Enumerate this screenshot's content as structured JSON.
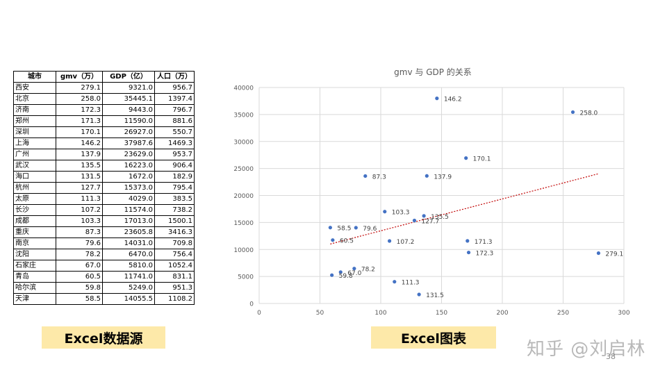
{
  "table": {
    "headers": [
      "城市",
      "gmv（万）",
      "GDP（亿）",
      "人口（万）"
    ],
    "rows": [
      [
        "西安",
        "279.1",
        "9321.0",
        "956.7"
      ],
      [
        "北京",
        "258.0",
        "35445.1",
        "1397.4"
      ],
      [
        "济南",
        "172.3",
        "9443.0",
        "796.7"
      ],
      [
        "郑州",
        "171.3",
        "11590.0",
        "881.6"
      ],
      [
        "深圳",
        "170.1",
        "26927.0",
        "550.7"
      ],
      [
        "上海",
        "146.2",
        "37987.6",
        "1469.3"
      ],
      [
        "广州",
        "137.9",
        "23629.0",
        "953.7"
      ],
      [
        "武汉",
        "135.5",
        "16223.0",
        "906.4"
      ],
      [
        "海口",
        "131.5",
        "1672.0",
        "182.9"
      ],
      [
        "杭州",
        "127.7",
        "15373.0",
        "795.4"
      ],
      [
        "太原",
        "111.3",
        "4029.0",
        "383.5"
      ],
      [
        "长沙",
        "107.2",
        "11574.0",
        "738.2"
      ],
      [
        "成都",
        "103.3",
        "17013.0",
        "1500.1"
      ],
      [
        "重庆",
        "87.3",
        "23605.8",
        "3416.3"
      ],
      [
        "南京",
        "79.6",
        "14031.0",
        "709.8"
      ],
      [
        "沈阳",
        "78.2",
        "6470.0",
        "756.4"
      ],
      [
        "石家庄",
        "67.0",
        "5810.0",
        "1052.4"
      ],
      [
        "青岛",
        "60.5",
        "11741.0",
        "831.1"
      ],
      [
        "哈尔滨",
        "59.8",
        "5249.0",
        "951.3"
      ],
      [
        "天津",
        "58.5",
        "14055.5",
        "1108.2"
      ]
    ]
  },
  "labels": {
    "left": "Excel数据源",
    "right": "Excel图表"
  },
  "watermark": "知乎 @刘启林",
  "page_number": "38",
  "chart_data": {
    "type": "scatter",
    "title": "gmv 与 GDP 的关系",
    "xlabel": "",
    "ylabel": "",
    "xlim": [
      0,
      300
    ],
    "ylim": [
      0,
      40000
    ],
    "xticks": [
      0,
      50,
      100,
      150,
      200,
      250,
      300
    ],
    "yticks": [
      0,
      5000,
      10000,
      15000,
      20000,
      25000,
      30000,
      35000,
      40000
    ],
    "grid": true,
    "trendline": "linear",
    "point_color": "#4472c4",
    "trend_color": "#c00000",
    "points": [
      {
        "x": 279.1,
        "y": 9321.0,
        "label": "279.1"
      },
      {
        "x": 258.0,
        "y": 35445.1,
        "label": "258.0"
      },
      {
        "x": 172.3,
        "y": 9443.0,
        "label": "172.3"
      },
      {
        "x": 171.3,
        "y": 11590.0,
        "label": "171.3"
      },
      {
        "x": 170.1,
        "y": 26927.0,
        "label": "170.1"
      },
      {
        "x": 146.2,
        "y": 37987.6,
        "label": "146.2"
      },
      {
        "x": 137.9,
        "y": 23629.0,
        "label": "137.9"
      },
      {
        "x": 135.5,
        "y": 16223.0,
        "label": "135.5"
      },
      {
        "x": 131.5,
        "y": 1672.0,
        "label": "131.5"
      },
      {
        "x": 127.7,
        "y": 15373.0,
        "label": "127.7"
      },
      {
        "x": 111.3,
        "y": 4029.0,
        "label": "111.3"
      },
      {
        "x": 107.2,
        "y": 11574.0,
        "label": "107.2"
      },
      {
        "x": 103.3,
        "y": 17013.0,
        "label": "103.3"
      },
      {
        "x": 87.3,
        "y": 23605.8,
        "label": "87.3"
      },
      {
        "x": 79.6,
        "y": 14031.0,
        "label": "79.6"
      },
      {
        "x": 78.2,
        "y": 6470.0,
        "label": "78.2"
      },
      {
        "x": 67.0,
        "y": 5810.0,
        "label": "67.0"
      },
      {
        "x": 60.5,
        "y": 11741.0,
        "label": "60.5"
      },
      {
        "x": 59.8,
        "y": 5249.0,
        "label": "59.8"
      },
      {
        "x": 58.5,
        "y": 14055.5,
        "label": "58.5"
      }
    ]
  }
}
